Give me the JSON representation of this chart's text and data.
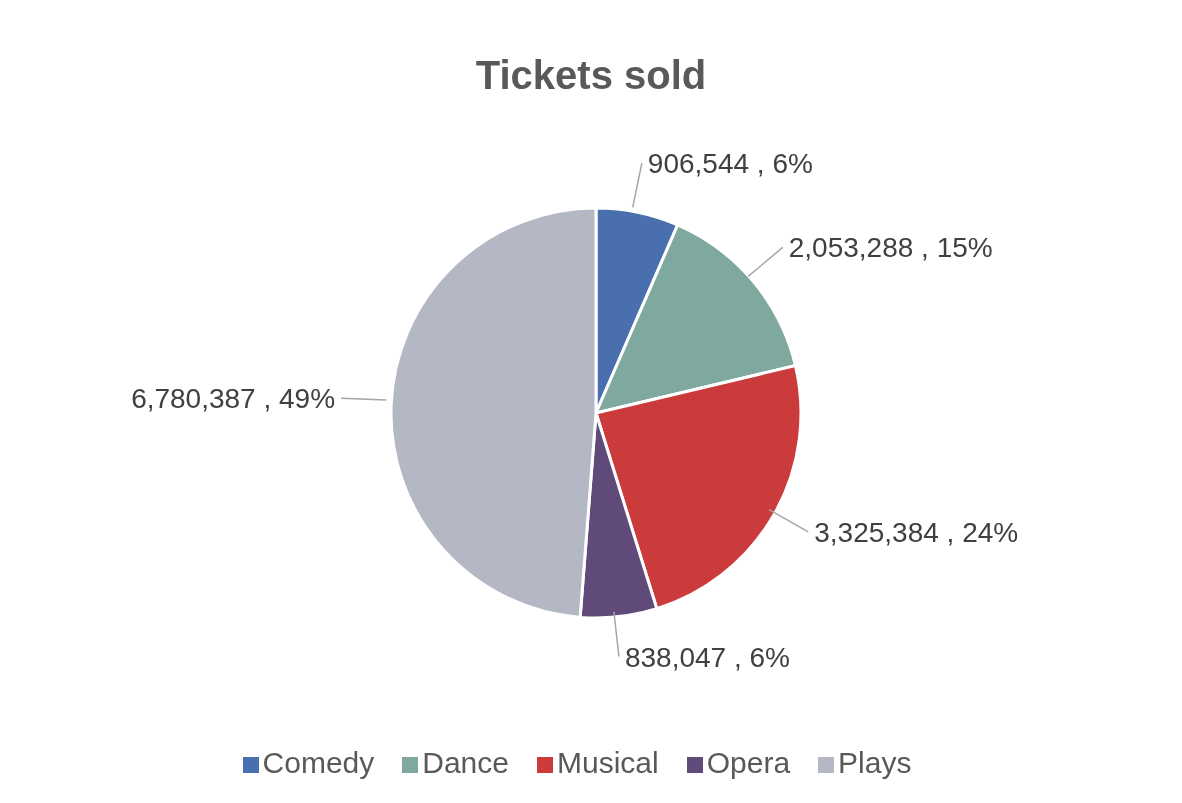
{
  "chart_data": {
    "type": "pie",
    "title": "Tickets sold",
    "categories": [
      "Comedy",
      "Dance",
      "Musical",
      "Opera",
      "Plays"
    ],
    "values": [
      906544,
      2053288,
      3325384,
      838047,
      6780387
    ],
    "colors": [
      "#4a6fae",
      "#7fa89f",
      "#cc3b3b",
      "#5f4a7a",
      "#b4b8c4"
    ],
    "value_labels": [
      "906,544 , 6%",
      "2,053,288 , 15%",
      "3,325,384 , 24%",
      "838,047 , 6%",
      "6,780,387 , 49%"
    ],
    "legend": "bottom"
  }
}
